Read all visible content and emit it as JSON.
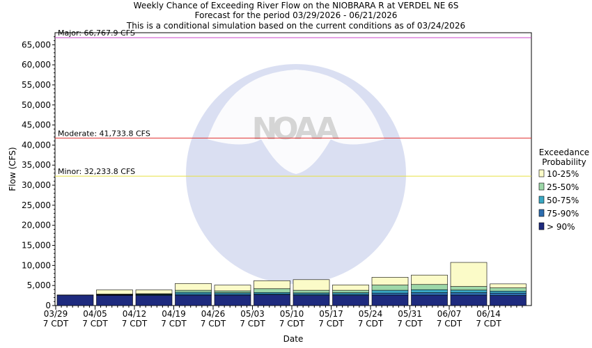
{
  "chart_data": {
    "type": "bar",
    "stacked": true,
    "title_lines": [
      "Weekly Chance of Exceeding River Flow on the NIOBRARA R at VERDEL NE 6S",
      "Forecast for the period 03/29/2026 - 06/21/2026",
      "This is a conditional simulation based on the current conditions as of 03/24/2026"
    ],
    "xlabel": "Date",
    "ylabel": "Flow (CFS)",
    "ylim": [
      0,
      68000
    ],
    "yticks": [
      0,
      5000,
      10000,
      15000,
      20000,
      25000,
      30000,
      35000,
      40000,
      45000,
      50000,
      55000,
      60000,
      65000
    ],
    "ytick_labels": [
      "0",
      "5,000",
      "10,000",
      "15,000",
      "20,000",
      "25,000",
      "30,000",
      "35,000",
      "40,000",
      "45,000",
      "50,000",
      "55,000",
      "60,000",
      "65,000"
    ],
    "categories": [
      "03/29",
      "04/05",
      "04/12",
      "04/19",
      "04/26",
      "05/03",
      "05/10",
      "05/17",
      "05/24",
      "05/31",
      "06/07",
      "06/14"
    ],
    "tick_sublabel": "7 CDT",
    "grid": false,
    "legend_position": "right",
    "legend_title": [
      "Exceedance",
      "Probability"
    ],
    "series": [
      {
        "name": "> 90%",
        "color": "#1e2a7e",
        "values": [
          2600,
          2550,
          2500,
          2550,
          2550,
          2650,
          2500,
          2500,
          2600,
          2600,
          2600,
          2500
        ]
      },
      {
        "name": "75-90%",
        "color": "#2d6db0",
        "values": [
          50,
          100,
          150,
          300,
          300,
          250,
          300,
          300,
          500,
          600,
          600,
          600
        ]
      },
      {
        "name": "50-75%",
        "color": "#3aa8c4",
        "values": [
          0,
          100,
          150,
          450,
          350,
          350,
          350,
          400,
          700,
          750,
          650,
          500
        ]
      },
      {
        "name": "25-50%",
        "color": "#9dd7a8",
        "values": [
          0,
          100,
          150,
          500,
          450,
          950,
          650,
          600,
          1300,
          1300,
          900,
          800
        ]
      },
      {
        "name": "10-25%",
        "color": "#fbfbc8",
        "values": [
          0,
          1050,
          950,
          1700,
          1450,
          2000,
          2650,
          1350,
          1950,
          2350,
          6000,
          1000
        ]
      }
    ],
    "thresholds": [
      {
        "label": "Major: 66,767.9 CFS",
        "value": 66767.9,
        "color": "#cc44cc"
      },
      {
        "label": "Moderate: 41,733.8 CFS",
        "value": 41733.8,
        "color": "#e03030"
      },
      {
        "label": "Minor: 32,233.8 CFS",
        "value": 32233.8,
        "color": "#e8e040"
      }
    ],
    "watermark_letters": [
      "N",
      "O",
      "A",
      "A"
    ]
  }
}
